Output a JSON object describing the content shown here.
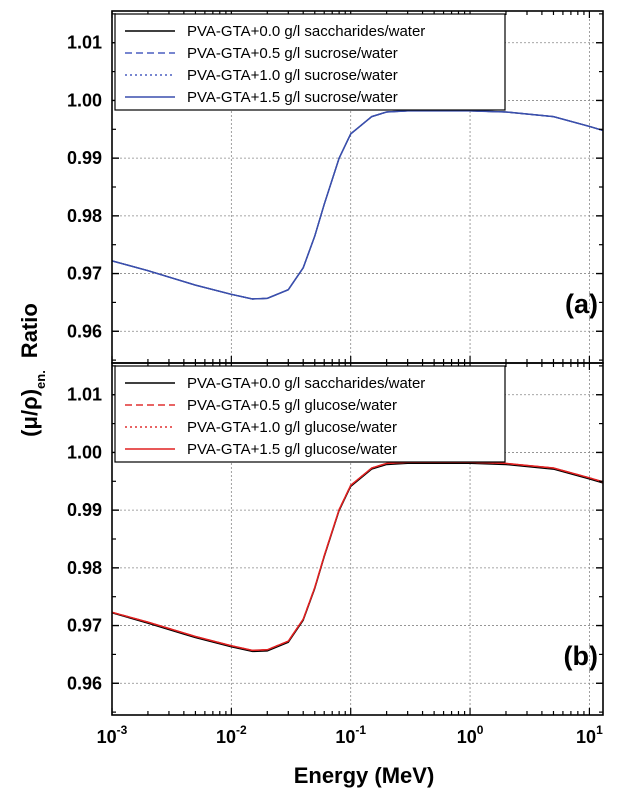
{
  "chart_data": {
    "type": "line",
    "xlabel": "Energy (MeV)",
    "ylabel_main": "(μ/ρ)",
    "ylabel_sub": "en.",
    "ylabel_suffix": "Ratio",
    "x_scale": "log",
    "xlim": [
      0.001,
      13
    ],
    "x_tick_labels": [
      {
        "value": 0.001,
        "base": "10",
        "exp": "-3"
      },
      {
        "value": 0.01,
        "base": "10",
        "exp": "-2"
      },
      {
        "value": 0.1,
        "base": "10",
        "exp": "-1"
      },
      {
        "value": 1,
        "base": "10",
        "exp": "0"
      },
      {
        "value": 10,
        "base": "10",
        "exp": "1"
      }
    ],
    "grid": true,
    "panels": [
      {
        "label": "(a)",
        "ylim": [
          0.9545,
          1.0155
        ],
        "y_ticks": [
          0.96,
          0.97,
          0.98,
          0.99,
          1.0,
          1.01
        ],
        "y_tick_labels": [
          "0.96",
          "0.97",
          "0.98",
          "0.99",
          "1.00",
          "1.01"
        ],
        "legend_position": "top-left",
        "series": [
          {
            "name": "PVA-GTA+0.0 g/l saccharides/water",
            "color": "#000000",
            "dash": "solid",
            "x": [
              0.001,
              0.002,
              0.005,
              0.01,
              0.015,
              0.02,
              0.03,
              0.04,
              0.05,
              0.06,
              0.08,
              0.1,
              0.15,
              0.2,
              0.3,
              0.5,
              1,
              2,
              5,
              10,
              13
            ],
            "y": [
              0.9722,
              0.9705,
              0.968,
              0.9664,
              0.9656,
              0.9657,
              0.9672,
              0.971,
              0.9765,
              0.982,
              0.99,
              0.9942,
              0.9972,
              0.998,
              0.9982,
              0.9982,
              0.9982,
              0.998,
              0.9972,
              0.9955,
              0.9948
            ]
          },
          {
            "name": "PVA-GTA+0.5 g/l sucrose/water",
            "color": "#4a5fc1",
            "dash": "dashed",
            "x": [
              0.001,
              0.002,
              0.005,
              0.01,
              0.015,
              0.02,
              0.03,
              0.04,
              0.05,
              0.06,
              0.08,
              0.1,
              0.15,
              0.2,
              0.3,
              0.5,
              1,
              2,
              5,
              10,
              13
            ],
            "y": [
              0.9722,
              0.9705,
              0.968,
              0.9664,
              0.9656,
              0.9657,
              0.9672,
              0.971,
              0.9765,
              0.982,
              0.99,
              0.9942,
              0.9972,
              0.998,
              0.9982,
              0.9982,
              0.9982,
              0.998,
              0.9972,
              0.9955,
              0.9948
            ]
          },
          {
            "name": "PVA-GTA+1.0 g/l sucrose/water",
            "color": "#4a5fc1",
            "dash": "dotted",
            "x": [
              0.001,
              0.002,
              0.005,
              0.01,
              0.015,
              0.02,
              0.03,
              0.04,
              0.05,
              0.06,
              0.08,
              0.1,
              0.15,
              0.2,
              0.3,
              0.5,
              1,
              2,
              5,
              10,
              13
            ],
            "y": [
              0.9722,
              0.9705,
              0.968,
              0.9664,
              0.9656,
              0.9657,
              0.9672,
              0.971,
              0.9765,
              0.982,
              0.99,
              0.9942,
              0.9972,
              0.998,
              0.9982,
              0.9982,
              0.9982,
              0.998,
              0.9972,
              0.9955,
              0.9948
            ]
          },
          {
            "name": "PVA-GTA+1.5 g/l sucrose/water",
            "color": "#3a4fae",
            "dash": "solid",
            "x": [
              0.001,
              0.002,
              0.005,
              0.01,
              0.015,
              0.02,
              0.03,
              0.04,
              0.05,
              0.06,
              0.08,
              0.1,
              0.15,
              0.2,
              0.3,
              0.5,
              1,
              2,
              5,
              10,
              13
            ],
            "y": [
              0.9722,
              0.9705,
              0.968,
              0.9664,
              0.9656,
              0.9657,
              0.9672,
              0.971,
              0.9765,
              0.982,
              0.99,
              0.9942,
              0.9972,
              0.998,
              0.9982,
              0.9982,
              0.9982,
              0.998,
              0.9972,
              0.9955,
              0.9948
            ]
          }
        ]
      },
      {
        "label": "(b)",
        "ylim": [
          0.9545,
          1.0155
        ],
        "y_ticks": [
          0.96,
          0.97,
          0.98,
          0.99,
          1.0,
          1.01
        ],
        "y_tick_labels": [
          "0.96",
          "0.97",
          "0.98",
          "0.99",
          "1.00",
          "1.01"
        ],
        "legend_position": "top-left",
        "series": [
          {
            "name": "PVA-GTA+0.0 g/l saccharides/water",
            "color": "#000000",
            "dash": "solid",
            "x": [
              0.001,
              0.002,
              0.005,
              0.01,
              0.015,
              0.02,
              0.03,
              0.04,
              0.05,
              0.06,
              0.08,
              0.1,
              0.15,
              0.2,
              0.3,
              0.5,
              1,
              2,
              5,
              10,
              13
            ],
            "y": [
              0.9722,
              0.9704,
              0.9679,
              0.9663,
              0.9655,
              0.9656,
              0.9671,
              0.9709,
              0.9764,
              0.9819,
              0.9899,
              0.9941,
              0.9971,
              0.9979,
              0.9981,
              0.9981,
              0.9981,
              0.9979,
              0.9971,
              0.9954,
              0.9947
            ]
          },
          {
            "name": "PVA-GTA+0.5 g/l glucose/water",
            "color": "#e03030",
            "dash": "dashed",
            "x": [
              0.001,
              0.002,
              0.005,
              0.01,
              0.015,
              0.02,
              0.03,
              0.04,
              0.05,
              0.06,
              0.08,
              0.1,
              0.15,
              0.2,
              0.3,
              0.5,
              1,
              2,
              5,
              10,
              13
            ],
            "y": [
              0.9723,
              0.9706,
              0.9681,
              0.9665,
              0.9657,
              0.9658,
              0.9673,
              0.9711,
              0.9766,
              0.9821,
              0.9901,
              0.9943,
              0.9973,
              0.9981,
              0.9983,
              0.9983,
              0.9983,
              0.9981,
              0.9973,
              0.9956,
              0.9949
            ]
          },
          {
            "name": "PVA-GTA+1.0 g/l glucose/water",
            "color": "#e03030",
            "dash": "dotted",
            "x": [
              0.001,
              0.002,
              0.005,
              0.01,
              0.015,
              0.02,
              0.03,
              0.04,
              0.05,
              0.06,
              0.08,
              0.1,
              0.15,
              0.2,
              0.3,
              0.5,
              1,
              2,
              5,
              10,
              13
            ],
            "y": [
              0.9723,
              0.9706,
              0.9681,
              0.9665,
              0.9657,
              0.9658,
              0.9673,
              0.9711,
              0.9766,
              0.9821,
              0.9901,
              0.9943,
              0.9973,
              0.9981,
              0.9983,
              0.9983,
              0.9983,
              0.9981,
              0.9973,
              0.9956,
              0.9949
            ]
          },
          {
            "name": "PVA-GTA+1.5 g/l glucose/water",
            "color": "#e02020",
            "dash": "solid",
            "x": [
              0.001,
              0.002,
              0.005,
              0.01,
              0.015,
              0.02,
              0.03,
              0.04,
              0.05,
              0.06,
              0.08,
              0.1,
              0.15,
              0.2,
              0.3,
              0.5,
              1,
              2,
              5,
              10,
              13
            ],
            "y": [
              0.9723,
              0.9706,
              0.9681,
              0.9665,
              0.9657,
              0.9658,
              0.9673,
              0.9711,
              0.9766,
              0.9821,
              0.9901,
              0.9943,
              0.9973,
              0.9981,
              0.9983,
              0.9983,
              0.9983,
              0.9981,
              0.9973,
              0.9956,
              0.9949
            ]
          }
        ]
      }
    ]
  }
}
